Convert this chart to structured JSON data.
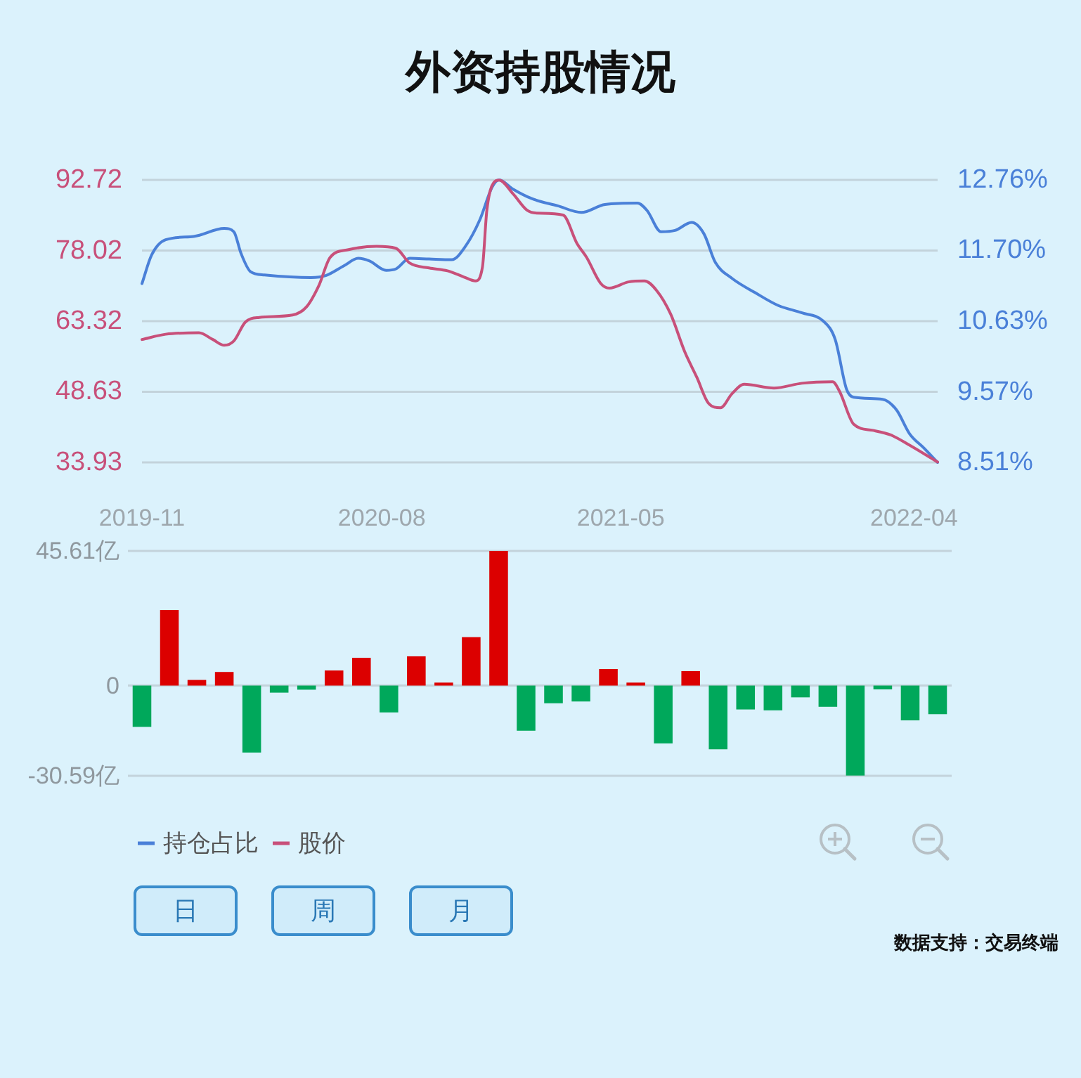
{
  "chart_data": [
    {
      "type": "line",
      "title": "外资持股情况",
      "xlim": [
        "2019-11-01",
        "2022-04-28"
      ],
      "xticks": [
        "2019-11",
        "2020-08",
        "2021-05",
        "2022-04"
      ],
      "ylim": [
        33.93,
        92.72
      ],
      "yticks": [
        33.93,
        48.63,
        63.32,
        78.02,
        92.72
      ],
      "y2lim": [
        8.51,
        12.76
      ],
      "y2ticks": [
        {
          "value": 8.51,
          "label": "8.51%"
        },
        {
          "value": 9.57,
          "label": "9.57%"
        },
        {
          "value": 10.63,
          "label": "10.63%"
        },
        {
          "value": 11.7,
          "label": "11.70%"
        },
        {
          "value": 12.76,
          "label": "12.76%"
        }
      ],
      "grid": "y",
      "legend": "bottom left",
      "annotations": [
        "日",
        "周",
        "月"
      ],
      "series": [
        {
          "name": "持仓占比",
          "color": "#4a80d8",
          "axis": "y2",
          "x": [
            "2019-11-01",
            "2019-11-12",
            "2019-11-28",
            "2019-12-30",
            "2020-02-03",
            "2020-02-14",
            "2020-02-22",
            "2020-03-04",
            "2020-03-20",
            "2020-05-12",
            "2020-05-29",
            "2020-06-19",
            "2020-07-05",
            "2020-07-18",
            "2020-08-06",
            "2020-08-17",
            "2020-09-02",
            "2020-09-24",
            "2020-10-20",
            "2020-11-05",
            "2020-11-21",
            "2020-12-05",
            "2020-12-13",
            "2020-12-29",
            "2021-01-19",
            "2021-02-18",
            "2021-03-17",
            "2021-04-13",
            "2021-05-20",
            "2021-05-31",
            "2021-06-16",
            "2021-07-02",
            "2021-07-21",
            "2021-08-04",
            "2021-08-17",
            "2021-09-05",
            "2021-10-02",
            "2021-10-28",
            "2021-11-24",
            "2021-12-18",
            "2022-01-01",
            "2022-01-14",
            "2022-01-22",
            "2022-02-24",
            "2022-03-12",
            "2022-03-27",
            "2022-04-12",
            "2022-04-28"
          ],
          "values": [
            11.2,
            11.63,
            11.86,
            11.91,
            12.03,
            11.98,
            11.66,
            11.38,
            11.33,
            11.29,
            11.32,
            11.47,
            11.58,
            11.54,
            11.4,
            11.42,
            11.58,
            11.57,
            11.56,
            11.77,
            12.16,
            12.65,
            12.76,
            12.62,
            12.48,
            12.37,
            12.27,
            12.39,
            12.41,
            12.3,
            11.98,
            12.0,
            12.12,
            11.95,
            11.52,
            11.28,
            11.06,
            10.87,
            10.76,
            10.64,
            10.36,
            9.61,
            9.49,
            9.46,
            9.3,
            8.94,
            8.73,
            8.51
          ]
        },
        {
          "name": "股价",
          "color": "#c8507a",
          "x": [
            "2019-11-01",
            "2019-11-28",
            "2020-01-05",
            "2020-01-21",
            "2020-02-03",
            "2020-02-14",
            "2020-02-27",
            "2020-03-14",
            "2020-04-21",
            "2020-05-07",
            "2020-05-21",
            "2020-06-03",
            "2020-06-24",
            "2020-07-26",
            "2020-08-17",
            "2020-09-02",
            "2020-09-24",
            "2020-10-15",
            "2020-11-03",
            "2020-11-16",
            "2020-11-24",
            "2020-11-29",
            "2020-12-07",
            "2020-12-13",
            "2020-12-29",
            "2021-01-14",
            "2021-01-25",
            "2021-02-24",
            "2021-03-12",
            "2021-03-23",
            "2021-04-08",
            "2021-04-18",
            "2021-05-10",
            "2021-05-28",
            "2021-06-11",
            "2021-06-27",
            "2021-07-13",
            "2021-07-27",
            "2021-08-09",
            "2021-08-23",
            "2021-09-05",
            "2021-09-19",
            "2021-10-23",
            "2021-11-24",
            "2021-12-29",
            "2022-01-06",
            "2022-01-22",
            "2022-02-13",
            "2022-03-06",
            "2022-03-27",
            "2022-04-28"
          ],
          "values": [
            59.5,
            60.6,
            60.9,
            59.5,
            58.3,
            59.2,
            63.1,
            64.1,
            64.6,
            66.3,
            70.7,
            76.6,
            78.2,
            78.9,
            78.5,
            75.4,
            74.4,
            73.8,
            72.5,
            71.7,
            74.6,
            86.4,
            92.2,
            92.7,
            89.8,
            86.4,
            85.8,
            85.4,
            79.5,
            76.6,
            71.2,
            70.2,
            71.5,
            71.7,
            69.7,
            64.8,
            57.0,
            51.6,
            46.3,
            45.3,
            48.2,
            50.2,
            49.4,
            50.4,
            50.7,
            48.7,
            41.9,
            40.6,
            39.6,
            37.5,
            34.0
          ]
        }
      ]
    },
    {
      "type": "bar",
      "categories": [
        null,
        null,
        null,
        null,
        null,
        null,
        null,
        null,
        null,
        null,
        null,
        null,
        null,
        null,
        null,
        null,
        null,
        null,
        null,
        null,
        null,
        null,
        null,
        null,
        null,
        null,
        null,
        null,
        null,
        null
      ],
      "values": [
        -14.0,
        25.6,
        1.9,
        4.6,
        -22.7,
        -2.4,
        -1.4,
        5.1,
        9.4,
        -9.1,
        9.9,
        1.0,
        16.4,
        45.6,
        -15.3,
        -6.0,
        -5.4,
        5.6,
        1.0,
        -19.6,
        4.9,
        -21.6,
        -8.1,
        -8.4,
        -4.0,
        -7.2,
        -30.5,
        -1.3,
        -11.8,
        -9.7
      ],
      "colors": [
        "#00a85b",
        "#dc0000",
        "#dc0000",
        "#dc0000",
        "#00a85b",
        "#00a85b",
        "#00a85b",
        "#dc0000",
        "#dc0000",
        "#00a85b",
        "#dc0000",
        "#dc0000",
        "#dc0000",
        "#dc0000",
        "#00a85b",
        "#00a85b",
        "#00a85b",
        "#dc0000",
        "#dc0000",
        "#00a85b",
        "#dc0000",
        "#00a85b",
        "#00a85b",
        "#00a85b",
        "#00a85b",
        "#00a85b",
        "#00a85b",
        "#00a85b",
        "#00a85b",
        "#00a85b"
      ],
      "ylim": [
        -30.59,
        45.61
      ],
      "yticks": [
        {
          "value": -30.59,
          "label": "-30.59亿"
        },
        0,
        {
          "value": 45.61,
          "label": "45.61亿"
        }
      ],
      "grid": "y",
      "tick_labels": "y",
      "annotations": [
        "数据支持：交易终端"
      ]
    }
  ]
}
